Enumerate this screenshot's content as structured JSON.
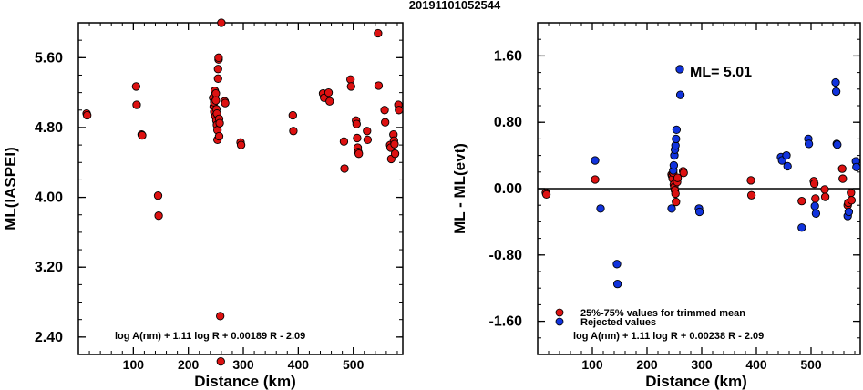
{
  "title": "20191101052544",
  "colors": {
    "trimmed": "#dd1111",
    "rejected": "#1133dd",
    "axes": "#000000"
  },
  "chart_data": [
    {
      "type": "scatter",
      "xlabel": "Distance (km)",
      "ylabel": "ML(IASPEI)",
      "xlim": [
        0,
        590
      ],
      "ylim": [
        2.2,
        6.0
      ],
      "xticks": [
        100,
        200,
        300,
        400,
        500
      ],
      "yticks": [
        2.4,
        3.2,
        4.0,
        4.8,
        5.6
      ],
      "ytick_labels": [
        "2.40",
        "3.20",
        "4.00",
        "4.80",
        "5.60"
      ],
      "formula": "log A(nm) + 1.11 log R + 0.00189 R - 2.09",
      "series": [
        {
          "color": "#dd1111",
          "points": [
            [
              15,
              4.96
            ],
            [
              16,
              4.94
            ],
            [
              105,
              5.27
            ],
            [
              106,
              5.06
            ],
            [
              115,
              4.72
            ],
            [
              116,
              4.71
            ],
            [
              145,
              4.02
            ],
            [
              146,
              3.79
            ],
            [
              245,
              5.14
            ],
            [
              246,
              5.04
            ],
            [
              247,
              5.09
            ],
            [
              247,
              4.98
            ],
            [
              248,
              5.22
            ],
            [
              249,
              4.93
            ],
            [
              250,
              5.19
            ],
            [
              250,
              5.11
            ],
            [
              251,
              5.01
            ],
            [
              251,
              4.88
            ],
            [
              252,
              4.96
            ],
            [
              252,
              4.83
            ],
            [
              253,
              4.77
            ],
            [
              253,
              4.66
            ],
            [
              254,
              5.36
            ],
            [
              254,
              5.47
            ],
            [
              255,
              5.58
            ],
            [
              255,
              5.6
            ],
            [
              256,
              4.7
            ],
            [
              256,
              4.9
            ],
            [
              257,
              4.85
            ],
            [
              258,
              2.64
            ],
            [
              259,
              2.12
            ],
            [
              260,
              6.0
            ],
            [
              266,
              5.1
            ],
            [
              267,
              5.08
            ],
            [
              295,
              4.63
            ],
            [
              296,
              4.6
            ],
            [
              390,
              4.94
            ],
            [
              391,
              4.76
            ],
            [
              445,
              5.19
            ],
            [
              447,
              5.14
            ],
            [
              455,
              5.2
            ],
            [
              457,
              5.1
            ],
            [
              483,
              4.64
            ],
            [
              484,
              4.33
            ],
            [
              495,
              5.35
            ],
            [
              496,
              5.27
            ],
            [
              505,
              4.88
            ],
            [
              506,
              4.84
            ],
            [
              507,
              4.68
            ],
            [
              508,
              4.57
            ],
            [
              509,
              4.52
            ],
            [
              510,
              4.5
            ],
            [
              525,
              4.76
            ],
            [
              526,
              4.66
            ],
            [
              545,
              5.88
            ],
            [
              546,
              5.28
            ],
            [
              557,
              5.0
            ],
            [
              558,
              4.86
            ],
            [
              567,
              4.6
            ],
            [
              568,
              4.57
            ],
            [
              569,
              4.44
            ],
            [
              573,
              4.72
            ],
            [
              574,
              4.65
            ],
            [
              575,
              4.61
            ],
            [
              576,
              4.5
            ],
            [
              582,
              5.06
            ],
            [
              583,
              5.0
            ]
          ]
        }
      ]
    },
    {
      "type": "scatter",
      "xlabel": "Distance (km)",
      "ylabel": "ML - ML(evt)",
      "xlim": [
        0,
        590
      ],
      "ylim": [
        -2.0,
        2.0
      ],
      "xticks": [
        100,
        200,
        300,
        400,
        500
      ],
      "yticks": [
        -1.6,
        -0.8,
        0.0,
        0.8,
        1.6
      ],
      "ytick_labels": [
        "-1.60",
        "-0.80",
        "0.00",
        "0.80",
        "1.60"
      ],
      "reference_line": 0.0,
      "annotation": "ML= 5.01",
      "formula": "log A(nm) + 1.11 log R + 0.00238 R - 2.09",
      "legend": [
        {
          "label": "25%-75% values for trimmed mean",
          "color": "#dd1111"
        },
        {
          "label": "Rejected values",
          "color": "#1133dd"
        }
      ],
      "series": [
        {
          "color": "#dd1111",
          "points": [
            [
              15,
              -0.05
            ],
            [
              16,
              -0.07
            ],
            [
              105,
              0.11
            ],
            [
              245,
              0.17
            ],
            [
              246,
              0.15
            ],
            [
              247,
              0.12
            ],
            [
              248,
              0.19
            ],
            [
              249,
              0.05
            ],
            [
              250,
              0.02
            ],
            [
              251,
              -0.02
            ],
            [
              252,
              -0.06
            ],
            [
              253,
              -0.16
            ],
            [
              254,
              0.1
            ],
            [
              255,
              0.08
            ],
            [
              256,
              0.13
            ],
            [
              266,
              0.21
            ],
            [
              267,
              0.19
            ],
            [
              390,
              0.1
            ],
            [
              391,
              -0.08
            ],
            [
              483,
              -0.15
            ],
            [
              505,
              0.09
            ],
            [
              506,
              0.06
            ],
            [
              508,
              -0.12
            ],
            [
              525,
              -0.01
            ],
            [
              526,
              -0.1
            ],
            [
              557,
              0.24
            ],
            [
              558,
              0.12
            ],
            [
              567,
              -0.2
            ],
            [
              568,
              -0.17
            ],
            [
              573,
              -0.05
            ],
            [
              574,
              -0.14
            ]
          ]
        },
        {
          "color": "#1133dd",
          "points": [
            [
              105,
              0.34
            ],
            [
              115,
              -0.24
            ],
            [
              145,
              -0.91
            ],
            [
              146,
              -1.15
            ],
            [
              245,
              -0.24
            ],
            [
              248,
              0.22
            ],
            [
              249,
              0.28
            ],
            [
              250,
              0.4
            ],
            [
              251,
              0.47
            ],
            [
              252,
              0.52
            ],
            [
              253,
              0.6
            ],
            [
              254,
              0.71
            ],
            [
              260,
              1.44
            ],
            [
              261,
              1.13
            ],
            [
              295,
              -0.24
            ],
            [
              296,
              -0.28
            ],
            [
              445,
              0.38
            ],
            [
              447,
              0.34
            ],
            [
              455,
              0.4
            ],
            [
              457,
              0.27
            ],
            [
              483,
              -0.47
            ],
            [
              495,
              0.6
            ],
            [
              496,
              0.54
            ],
            [
              507,
              -0.21
            ],
            [
              509,
              -0.3
            ],
            [
              545,
              1.28
            ],
            [
              546,
              1.17
            ],
            [
              547,
              0.54
            ],
            [
              548,
              0.53
            ],
            [
              567,
              -0.33
            ],
            [
              569,
              -0.28
            ],
            [
              582,
              0.33
            ],
            [
              583,
              0.26
            ]
          ]
        }
      ]
    }
  ]
}
